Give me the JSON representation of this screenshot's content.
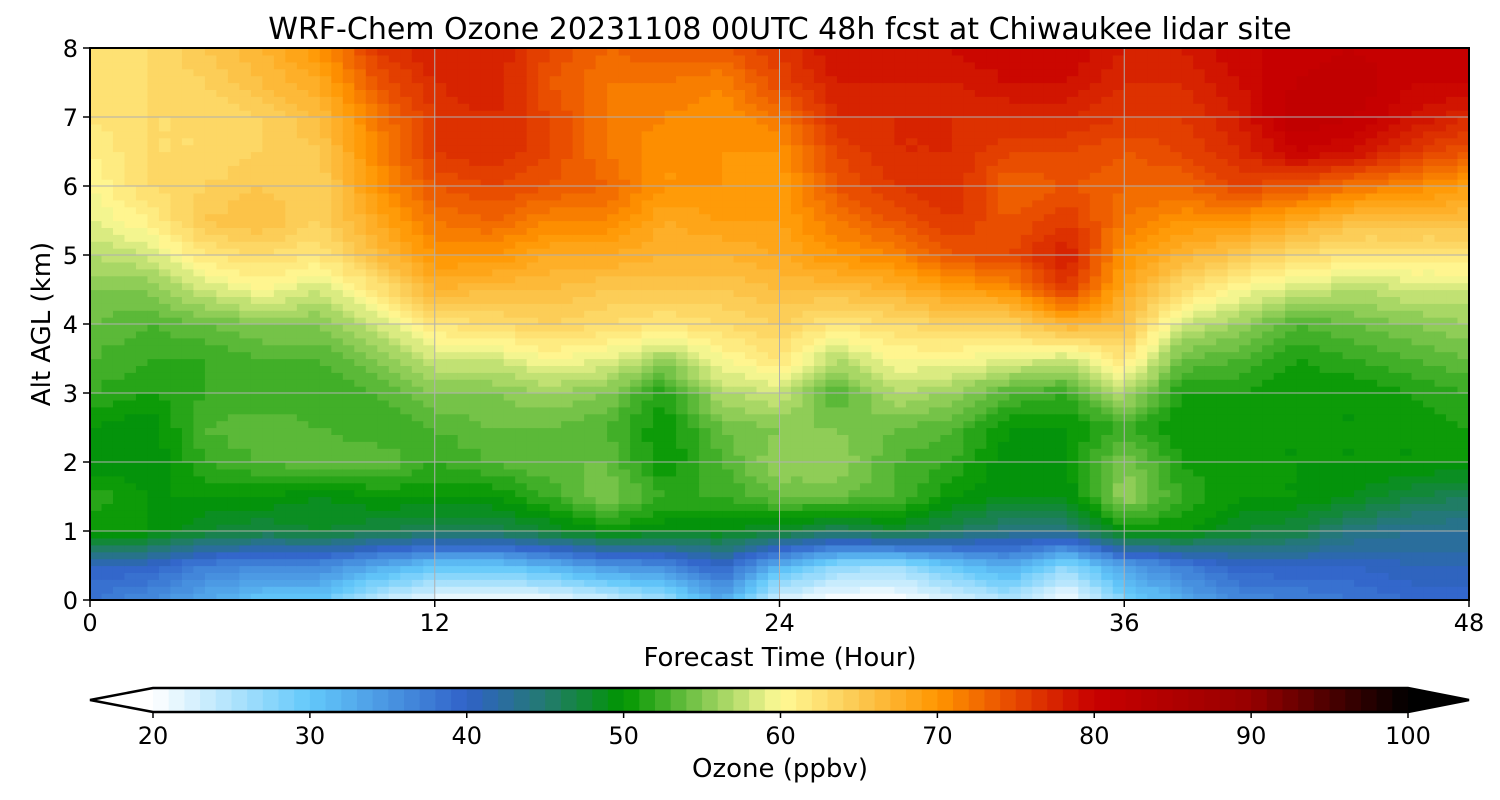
{
  "chart_data": {
    "type": "heatmap",
    "title": "WRF-Chem Ozone  20231108 00UTC 48h fcst at Chiwaukee lidar site",
    "xlabel": "Forecast Time (Hour)",
    "ylabel": "Alt AGL (km)",
    "xlim": [
      0,
      48
    ],
    "ylim": [
      0,
      8
    ],
    "xticks": [
      "0",
      "12",
      "24",
      "36",
      "48"
    ],
    "yticks": [
      "0",
      "1",
      "2",
      "3",
      "4",
      "5",
      "6",
      "7",
      "8"
    ],
    "grid": true,
    "colorbar": {
      "label": "Ozone  (ppbv)",
      "range": [
        20,
        100
      ],
      "ticks": [
        "20",
        "30",
        "40",
        "50",
        "60",
        "70",
        "80",
        "90",
        "100"
      ],
      "extend": "both",
      "anchors": [
        {
          "value": 20,
          "color": "#ffffff"
        },
        {
          "value": 30,
          "color": "#62c8fa"
        },
        {
          "value": 40,
          "color": "#3062c8"
        },
        {
          "value": 45,
          "color": "#237a70"
        },
        {
          "value": 50,
          "color": "#009600"
        },
        {
          "value": 55,
          "color": "#82c850"
        },
        {
          "value": 60,
          "color": "#fffa96"
        },
        {
          "value": 65,
          "color": "#fcc850"
        },
        {
          "value": 70,
          "color": "#ff9600"
        },
        {
          "value": 75,
          "color": "#e64600"
        },
        {
          "value": 80,
          "color": "#c80000"
        },
        {
          "value": 90,
          "color": "#960000"
        },
        {
          "value": 100,
          "color": "#000000"
        }
      ]
    },
    "x_hours": [
      0,
      2,
      4,
      6,
      8,
      10,
      12,
      14,
      16,
      18,
      20,
      22,
      24,
      26,
      28,
      30,
      32,
      34,
      36,
      38,
      40,
      42,
      44,
      46,
      48
    ],
    "y_km": [
      0,
      0.5,
      1,
      1.5,
      2,
      2.5,
      3,
      3.5,
      4,
      4.5,
      5,
      5.5,
      6,
      6.5,
      7,
      7.5,
      8
    ],
    "z_ppbv_by_hour": [
      [
        38,
        40,
        50,
        52,
        49,
        50,
        52,
        53,
        54,
        55,
        57,
        59,
        60,
        61,
        62,
        62,
        62
      ],
      [
        36,
        40,
        50,
        50,
        49,
        49,
        51,
        52,
        53,
        55,
        58,
        61,
        63,
        63,
        63,
        63,
        63
      ],
      [
        33,
        37,
        48,
        50,
        52,
        53,
        52,
        52,
        54,
        58,
        62,
        65,
        64,
        63,
        63,
        64,
        65
      ],
      [
        30,
        36,
        47,
        50,
        53,
        54,
        52,
        53,
        55,
        60,
        63,
        66,
        65,
        64,
        64,
        66,
        67
      ],
      [
        30,
        36,
        48,
        49,
        54,
        53,
        52,
        53,
        55,
        58,
        62,
        64,
        64,
        65,
        66,
        68,
        70
      ],
      [
        24,
        33,
        47,
        50,
        54,
        52,
        53,
        55,
        58,
        62,
        66,
        68,
        70,
        71,
        72,
        74,
        76
      ],
      [
        21,
        30,
        46,
        50,
        52,
        53,
        55,
        58,
        62,
        67,
        70,
        72,
        74,
        76,
        76,
        77,
        78
      ],
      [
        20,
        30,
        46,
        50,
        53,
        54,
        55,
        58,
        63,
        66,
        70,
        73,
        75,
        77,
        77,
        78,
        78
      ],
      [
        21,
        32,
        48,
        52,
        54,
        54,
        56,
        60,
        64,
        66,
        68,
        71,
        74,
        75,
        75,
        74,
        75
      ],
      [
        23,
        35,
        50,
        55,
        54,
        53,
        55,
        59,
        63,
        65,
        68,
        71,
        73,
        72,
        72,
        72,
        73
      ],
      [
        26,
        36,
        49,
        52,
        50,
        50,
        51,
        56,
        62,
        65,
        67,
        68,
        70,
        70,
        71,
        72,
        74
      ],
      [
        33,
        40,
        49,
        52,
        53,
        54,
        57,
        60,
        63,
        65,
        67,
        69,
        70,
        70,
        70,
        71,
        74
      ],
      [
        22,
        32,
        48,
        54,
        56,
        55,
        58,
        62,
        64,
        66,
        68,
        69,
        69,
        70,
        72,
        75,
        76
      ],
      [
        20,
        27,
        46,
        54,
        56,
        55,
        53,
        57,
        62,
        66,
        70,
        72,
        74,
        75,
        77,
        78,
        79
      ],
      [
        20,
        26,
        48,
        53,
        53,
        54,
        57,
        60,
        63,
        67,
        71,
        74,
        76,
        77,
        77,
        78,
        79
      ],
      [
        22,
        30,
        46,
        50,
        52,
        53,
        56,
        60,
        64,
        69,
        74,
        76,
        77,
        77,
        77,
        78,
        79
      ],
      [
        25,
        33,
        44,
        49,
        49,
        50,
        53,
        59,
        64,
        70,
        75,
        74,
        73,
        75,
        77,
        79,
        80
      ],
      [
        20,
        27,
        44,
        49,
        50,
        50,
        52,
        58,
        67,
        76,
        78,
        76,
        74,
        75,
        77,
        79,
        80
      ],
      [
        28,
        34,
        50,
        56,
        55,
        52,
        57,
        62,
        66,
        68,
        70,
        72,
        73,
        74,
        76,
        77,
        78
      ],
      [
        33,
        37,
        50,
        52,
        51,
        50,
        51,
        54,
        58,
        63,
        67,
        70,
        73,
        75,
        76,
        77,
        78
      ],
      [
        36,
        40,
        48,
        50,
        50,
        50,
        51,
        53,
        56,
        60,
        65,
        70,
        75,
        77,
        78,
        79,
        80
      ],
      [
        37,
        40,
        47,
        50,
        50,
        50,
        50,
        51,
        53,
        58,
        63,
        68,
        74,
        80,
        82,
        81,
        80
      ],
      [
        38,
        40,
        44,
        49,
        50,
        50,
        50,
        52,
        54,
        57,
        62,
        66,
        72,
        79,
        81,
        82,
        81
      ],
      [
        39,
        41,
        43,
        47,
        50,
        50,
        51,
        53,
        55,
        58,
        62,
        66,
        71,
        76,
        79,
        80,
        80
      ],
      [
        39,
        41,
        43,
        46,
        50,
        51,
        52,
        54,
        56,
        58,
        62,
        66,
        69,
        74,
        77,
        80,
        80
      ]
    ]
  }
}
